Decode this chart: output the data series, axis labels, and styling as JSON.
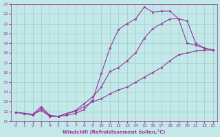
{
  "xlabel": "Windchill (Refroidissement éolien,°C)",
  "xlim": [
    -0.5,
    23.5
  ],
  "ylim": [
    11,
    23
  ],
  "xticks": [
    0,
    1,
    2,
    3,
    4,
    5,
    6,
    7,
    8,
    9,
    10,
    11,
    12,
    13,
    14,
    15,
    16,
    17,
    18,
    19,
    20,
    21,
    22,
    23
  ],
  "yticks": [
    11,
    12,
    13,
    14,
    15,
    16,
    17,
    18,
    19,
    20,
    21,
    22,
    23
  ],
  "bg_color": "#c2e8e8",
  "grid_color": "#a0cccc",
  "line_color": "#993399",
  "lines": [
    {
      "x": [
        0,
        1,
        2,
        3,
        4,
        5,
        6,
        7,
        8,
        9,
        10,
        11,
        12,
        13,
        14,
        15,
        16,
        17,
        18,
        19,
        20,
        21,
        22,
        23
      ],
      "y": [
        11.9,
        11.8,
        11.7,
        12.1,
        11.5,
        11.5,
        11.6,
        11.8,
        12.2,
        13.2,
        15.9,
        18.5,
        20.4,
        21.0,
        21.5,
        22.7,
        22.2,
        22.3,
        22.3,
        21.5,
        19.0,
        18.8,
        18.5,
        18.3
      ]
    },
    {
      "x": [
        0,
        1,
        2,
        3,
        4,
        5,
        6,
        7,
        8,
        9,
        10,
        11,
        12,
        13,
        14,
        15,
        16,
        17,
        18,
        19,
        20,
        21,
        22,
        23
      ],
      "y": [
        11.9,
        11.8,
        11.6,
        12.3,
        11.5,
        11.5,
        11.8,
        12.1,
        12.8,
        13.5,
        14.5,
        16.1,
        16.5,
        17.2,
        18.0,
        19.5,
        20.5,
        21.0,
        21.5,
        21.5,
        21.3,
        19.0,
        18.5,
        18.3
      ]
    },
    {
      "x": [
        0,
        1,
        2,
        3,
        4,
        5,
        6,
        7,
        8,
        9,
        10,
        11,
        12,
        13,
        14,
        15,
        16,
        17,
        18,
        19,
        20,
        21,
        22,
        23
      ],
      "y": [
        11.9,
        11.8,
        11.7,
        12.5,
        11.6,
        11.5,
        11.8,
        12.0,
        12.5,
        13.0,
        13.3,
        13.8,
        14.2,
        14.5,
        15.0,
        15.5,
        16.0,
        16.5,
        17.2,
        17.8,
        18.0,
        18.2,
        18.3,
        18.3
      ]
    }
  ]
}
